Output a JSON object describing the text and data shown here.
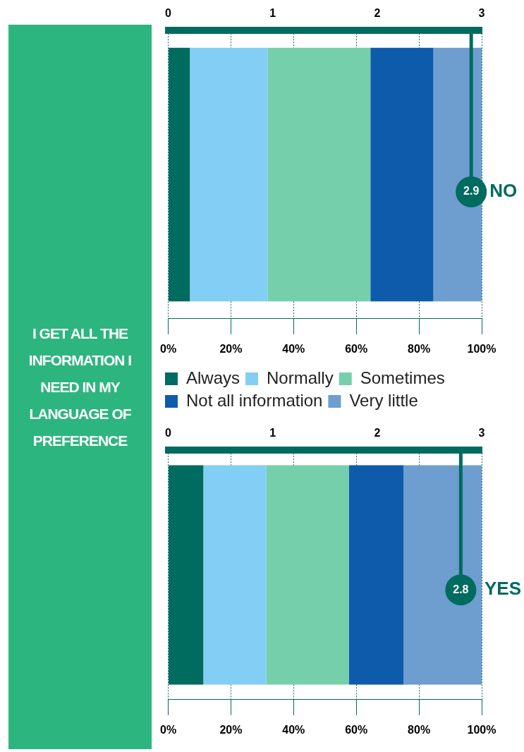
{
  "chart_data": [
    {
      "type": "other",
      "title": "I GET ALL THE INFORMATION I NEED IN MY LANGUAGE OF PREFERENCE",
      "color": "#2db57f"
    },
    {
      "type": "bar",
      "orientation": "horizontal",
      "stacked": true,
      "title": "NO",
      "categories": [
        null
      ],
      "series": [
        {
          "name": "Always",
          "color": "#006b5f",
          "values": [
            6.9
          ]
        },
        {
          "name": "Normally",
          "color": "#83cef4",
          "values": [
            24.8
          ]
        },
        {
          "name": "Sometimes",
          "color": "#76cfab",
          "values": [
            32.8
          ]
        },
        {
          "name": "Not all information",
          "color": "#0e5bac",
          "values": [
            20.1
          ]
        },
        {
          "name": "Very little",
          "color": "#6d9ecf",
          "values": [
            15.4
          ]
        }
      ],
      "xlim": [
        0,
        100
      ],
      "xticks": [
        {
          "value": 0,
          "label": "0%"
        },
        {
          "value": 20,
          "label": "20%"
        },
        {
          "value": 40,
          "label": "40%"
        },
        {
          "value": 60,
          "label": "60%"
        },
        {
          "value": 80,
          "label": "80%"
        },
        {
          "value": 100,
          "label": "100%"
        }
      ],
      "x2lim": [
        0,
        3
      ],
      "x2ticks": [
        0,
        1,
        2,
        3
      ],
      "ref_lines": [
        {
          "axis": "x2",
          "value": 2.9,
          "label": "2.9",
          "color": "#006b5f"
        }
      ],
      "grid": "x",
      "legend": "bottom"
    },
    {
      "type": "bar",
      "orientation": "horizontal",
      "stacked": true,
      "title": "YES",
      "categories": [
        null
      ],
      "series": [
        {
          "color": "#006b5f",
          "values": [
            11.2
          ]
        },
        {
          "color": "#83cef4",
          "values": [
            20.1
          ]
        },
        {
          "color": "#76cfab",
          "values": [
            26.3
          ]
        },
        {
          "color": "#0e5bac",
          "values": [
            17.5
          ]
        },
        {
          "color": "#6d9ecf",
          "values": [
            24.9
          ]
        }
      ],
      "xlim": [
        0,
        100
      ],
      "xticks": [
        {
          "value": 0,
          "label": "0%"
        },
        {
          "value": 20,
          "label": "20%"
        },
        {
          "value": 40,
          "label": "40%"
        },
        {
          "value": 60,
          "label": "60%"
        },
        {
          "value": 80,
          "label": "80%"
        },
        {
          "value": 100,
          "label": "100%"
        }
      ],
      "x2lim": [
        0,
        3
      ],
      "x2ticks": [
        0,
        1,
        2,
        3
      ],
      "ref_lines": [
        {
          "axis": "x2",
          "value": 2.8,
          "label": "2.8",
          "color": "#006b5f"
        }
      ],
      "grid": "x"
    }
  ]
}
